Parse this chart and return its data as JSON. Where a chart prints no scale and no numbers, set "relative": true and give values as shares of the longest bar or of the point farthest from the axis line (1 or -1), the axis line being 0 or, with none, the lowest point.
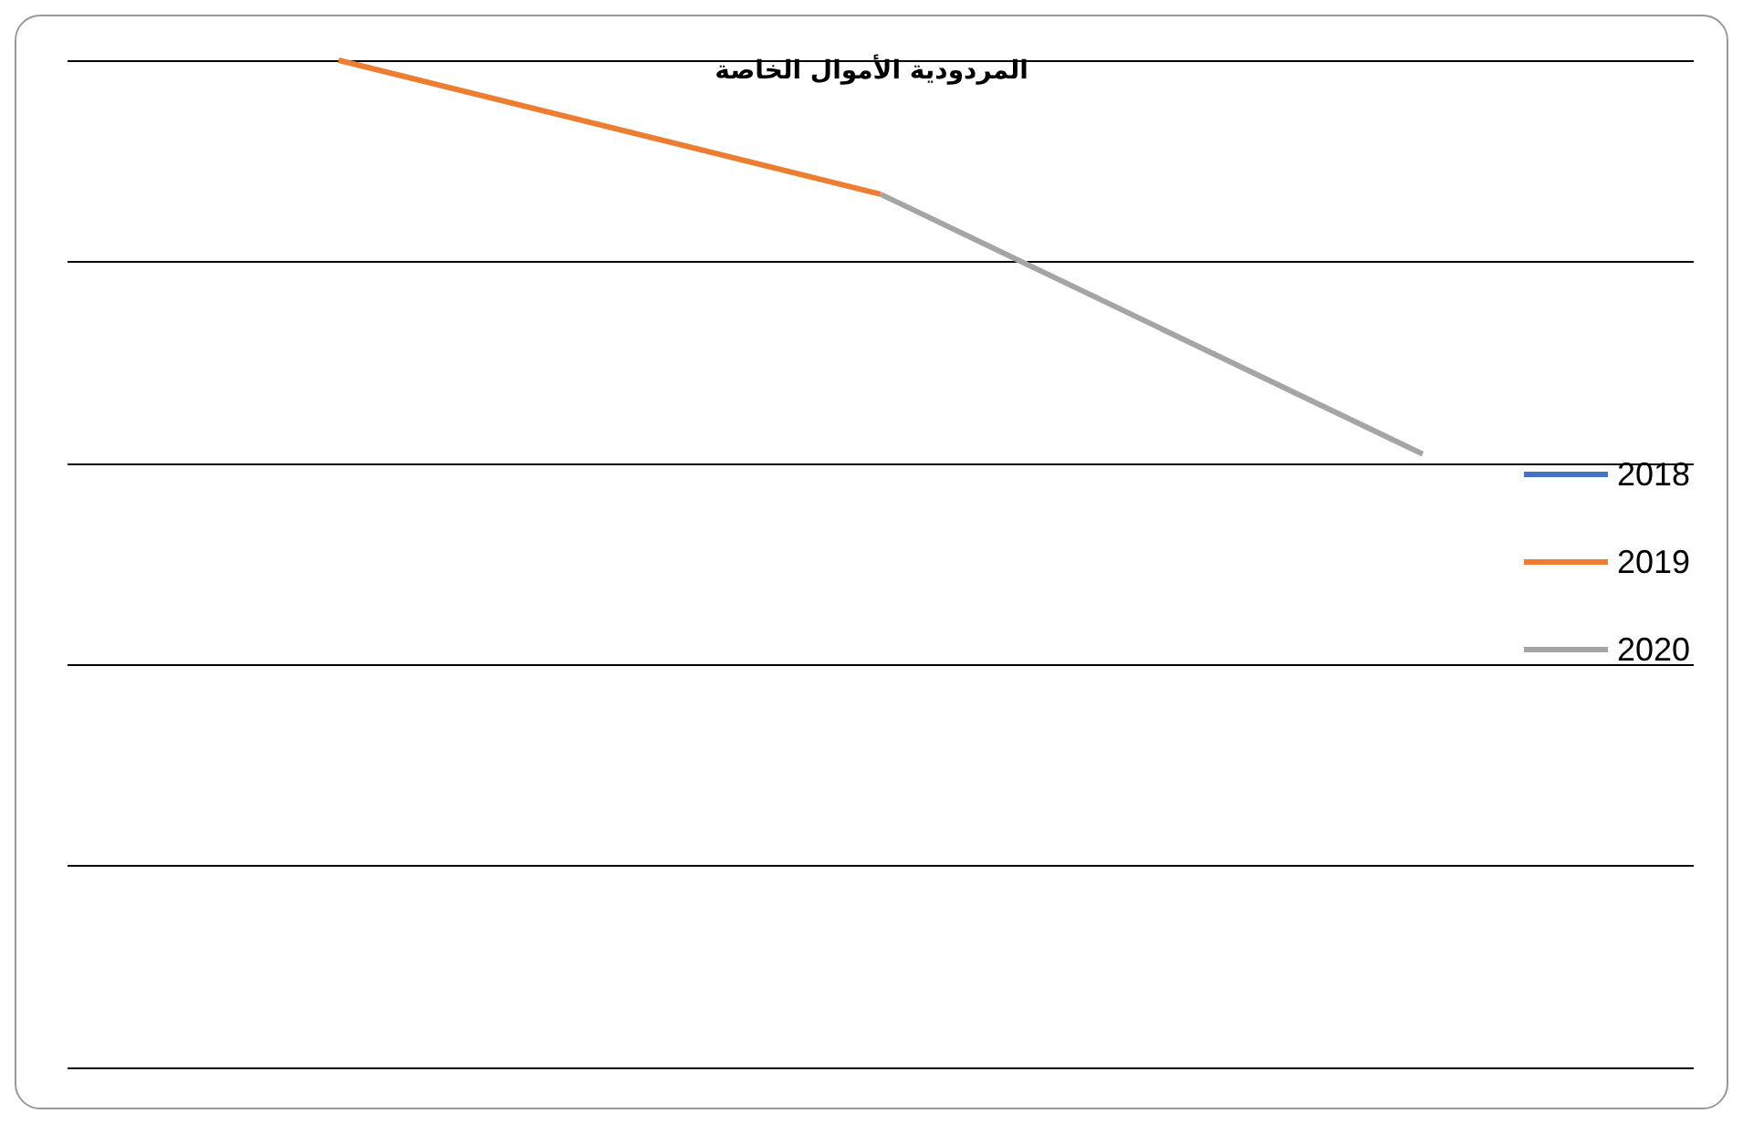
{
  "chart_data": {
    "type": "line",
    "title": "المردودية الأموال الخاصة",
    "relative": true,
    "categories": [
      null,
      null,
      null
    ],
    "series": [
      {
        "name": "2018",
        "color": "#4472c4",
        "values": [
          null,
          null,
          null
        ]
      },
      {
        "name": "2019",
        "color": "#ed7d31",
        "values": [
          1,
          0.867,
          null
        ]
      },
      {
        "name": "2020",
        "color": "#a5a5a5",
        "values": [
          null,
          0.867,
          0.609
        ]
      }
    ],
    "grid": "y",
    "legend": "right",
    "marker": "none"
  }
}
